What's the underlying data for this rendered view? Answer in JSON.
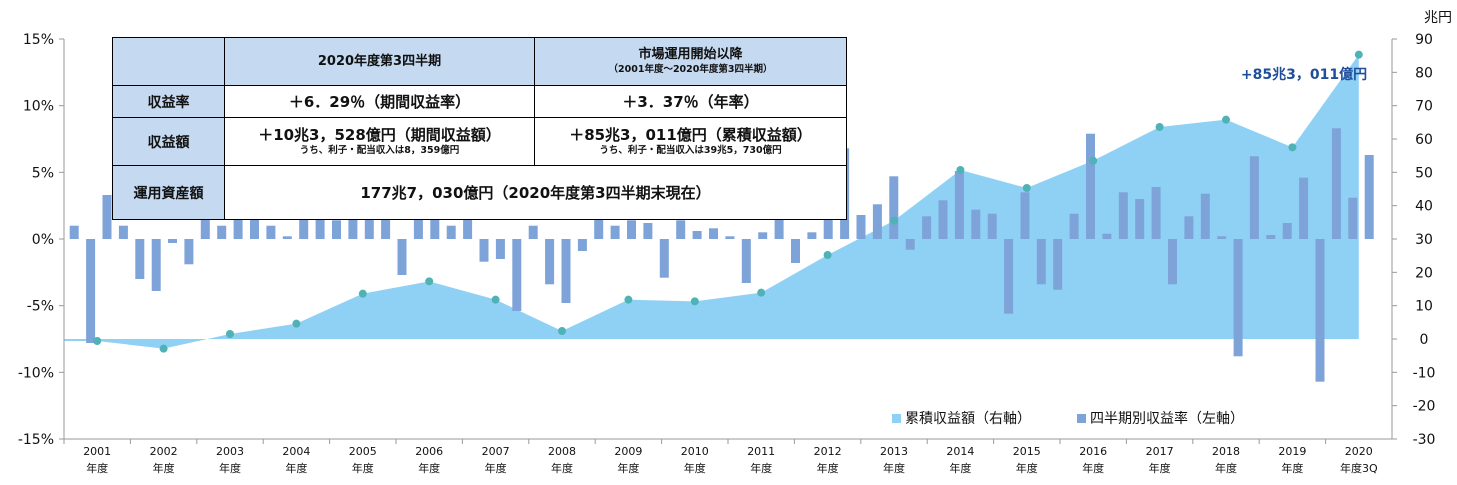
{
  "summary_table": {
    "col_headers": [
      "2020年度第3四半期",
      "市場運用開始以降"
    ],
    "col2_sub": "（2001年度～2020年度第3四半期）",
    "rows": [
      {
        "label": "収益率",
        "q3": "＋6．29％（期間収益率）",
        "since": "＋3．37％（年率）"
      },
      {
        "label": "収益額",
        "q3": "＋10兆3，528億円（期間収益額）",
        "q3_note": "うち、利子・配当収入は8，359億円",
        "since": "＋85兆3，011億円（累積収益額）",
        "since_note": "うち、利子・配当収入は39兆5，730億円"
      },
      {
        "label": "運用資産額",
        "merged": "177兆7，030億円（2020年度第3四半期末現在）"
      }
    ]
  },
  "chart_data": {
    "type": "bar+area",
    "left_axis": {
      "ticks": [
        "15%",
        "10%",
        "5%",
        "0%",
        "-5%",
        "-10%",
        "-15%"
      ],
      "range": [
        -15,
        15
      ]
    },
    "right_axis": {
      "unit": "兆円",
      "ticks": [
        "90",
        "80",
        "70",
        "60",
        "50",
        "40",
        "30",
        "20",
        "10",
        "0",
        "-10",
        "-20",
        "-30"
      ],
      "range": [
        -30,
        90
      ]
    },
    "x_labels": [
      {
        "year": "2001",
        "suffix": "年度"
      },
      {
        "year": "2002",
        "suffix": "年度"
      },
      {
        "year": "2003",
        "suffix": "年度"
      },
      {
        "year": "2004",
        "suffix": "年度"
      },
      {
        "year": "2005",
        "suffix": "年度"
      },
      {
        "year": "2006",
        "suffix": "年度"
      },
      {
        "year": "2007",
        "suffix": "年度"
      },
      {
        "year": "2008",
        "suffix": "年度"
      },
      {
        "year": "2009",
        "suffix": "年度"
      },
      {
        "year": "2010",
        "suffix": "年度"
      },
      {
        "year": "2011",
        "suffix": "年度"
      },
      {
        "year": "2012",
        "suffix": "年度"
      },
      {
        "year": "2013",
        "suffix": "年度"
      },
      {
        "year": "2014",
        "suffix": "年度"
      },
      {
        "year": "2015",
        "suffix": "年度"
      },
      {
        "year": "2016",
        "suffix": "年度"
      },
      {
        "year": "2017",
        "suffix": "年度"
      },
      {
        "year": "2018",
        "suffix": "年度"
      },
      {
        "year": "2019",
        "suffix": "年度"
      },
      {
        "year": "2020",
        "suffix": "年度3Q"
      }
    ],
    "quarterly_returns": {
      "name": "四半期別収益率（左軸）",
      "color": "#7ea3d8",
      "values": [
        1.0,
        -7.8,
        3.3,
        1.0,
        -3.0,
        -3.9,
        -0.3,
        -1.9,
        6.2,
        1.0,
        2.5,
        2.6,
        1.0,
        0.2,
        1.9,
        2.6,
        1.4,
        5.2,
        5.4,
        1.8,
        -2.7,
        3.2,
        3.1,
        1.0,
        2.7,
        -1.7,
        -1.5,
        -5.4,
        1.0,
        -3.4,
        -4.8,
        -0.9,
        3.8,
        1.0,
        1.4,
        1.2,
        -2.9,
        1.4,
        0.6,
        0.8,
        0.2,
        -3.3,
        0.5,
        5.1,
        -1.8,
        0.5,
        4.9,
        6.8,
        1.8,
        2.6,
        4.7,
        -0.8,
        1.7,
        2.9,
        5.1,
        2.2,
        1.9,
        -5.6,
        3.5,
        -3.4,
        -3.8,
        1.9,
        7.9,
        0.4,
        3.5,
        3.0,
        3.9,
        -3.4,
        1.7,
        3.4,
        0.2,
        -8.8,
        6.2,
        0.3,
        1.2,
        4.6,
        -10.7,
        8.3,
        3.1,
        6.3
      ]
    },
    "cumulative_return": {
      "name": "累積収益額（右軸）",
      "color": "#8fd1f5",
      "points": [
        -0.6,
        -2.9,
        1.5,
        4.6,
        13.6,
        17.3,
        11.8,
        2.4,
        11.8,
        11.3,
        13.9,
        25.2,
        35.5,
        50.7,
        45.3,
        53.5,
        63.6,
        65.8,
        57.5,
        85.3
      ]
    },
    "annotation": "+85兆3，011億円",
    "legend": [
      {
        "label": "累積収益額（右軸）",
        "color": "#8fd1f5"
      },
      {
        "label": "四半期別収益率（左軸）",
        "color": "#7ea3d8"
      }
    ]
  }
}
